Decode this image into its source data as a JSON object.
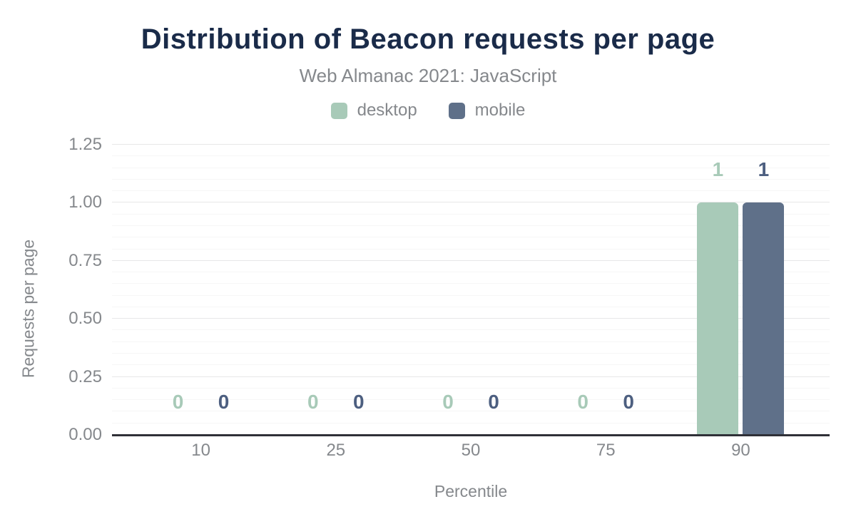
{
  "title": "Distribution of Beacon requests per page",
  "subtitle": "Web Almanac 2021: JavaScript",
  "legend": {
    "items": [
      {
        "label": "desktop",
        "color": "#a8cab8"
      },
      {
        "label": "mobile",
        "color": "#5f7089"
      }
    ]
  },
  "chart_data": {
    "type": "bar",
    "categories": [
      "10",
      "25",
      "50",
      "75",
      "90"
    ],
    "series": [
      {
        "name": "desktop",
        "color": "#a8cab8",
        "label_color": "#a8cab8",
        "values": [
          0,
          0,
          0,
          0,
          1
        ]
      },
      {
        "name": "mobile",
        "color": "#5f7089",
        "label_color": "#4d5f80",
        "values": [
          0,
          0,
          0,
          0,
          1
        ]
      }
    ],
    "title": "Distribution of Beacon requests per page",
    "subtitle": "Web Almanac 2021: JavaScript",
    "xlabel": "Percentile",
    "ylabel": "Requests per page",
    "ylim": [
      0,
      1.25
    ],
    "ytick_labels": [
      "0.00",
      "0.25",
      "0.50",
      "0.75",
      "1.00",
      "1.25"
    ],
    "yticks": [
      0,
      0.25,
      0.5,
      0.75,
      1,
      1.25
    ],
    "minor_grid_step": 0.05,
    "major_grid_step": 0.25,
    "grid": "on",
    "legend_position": "top"
  },
  "colors": {
    "title": "#1a2b49",
    "muted_text": "#85888c",
    "baseline": "#2f3037",
    "grid_minor": "#f6f6f6",
    "grid_major": "#e7e7e8",
    "background": "#ffffff"
  }
}
